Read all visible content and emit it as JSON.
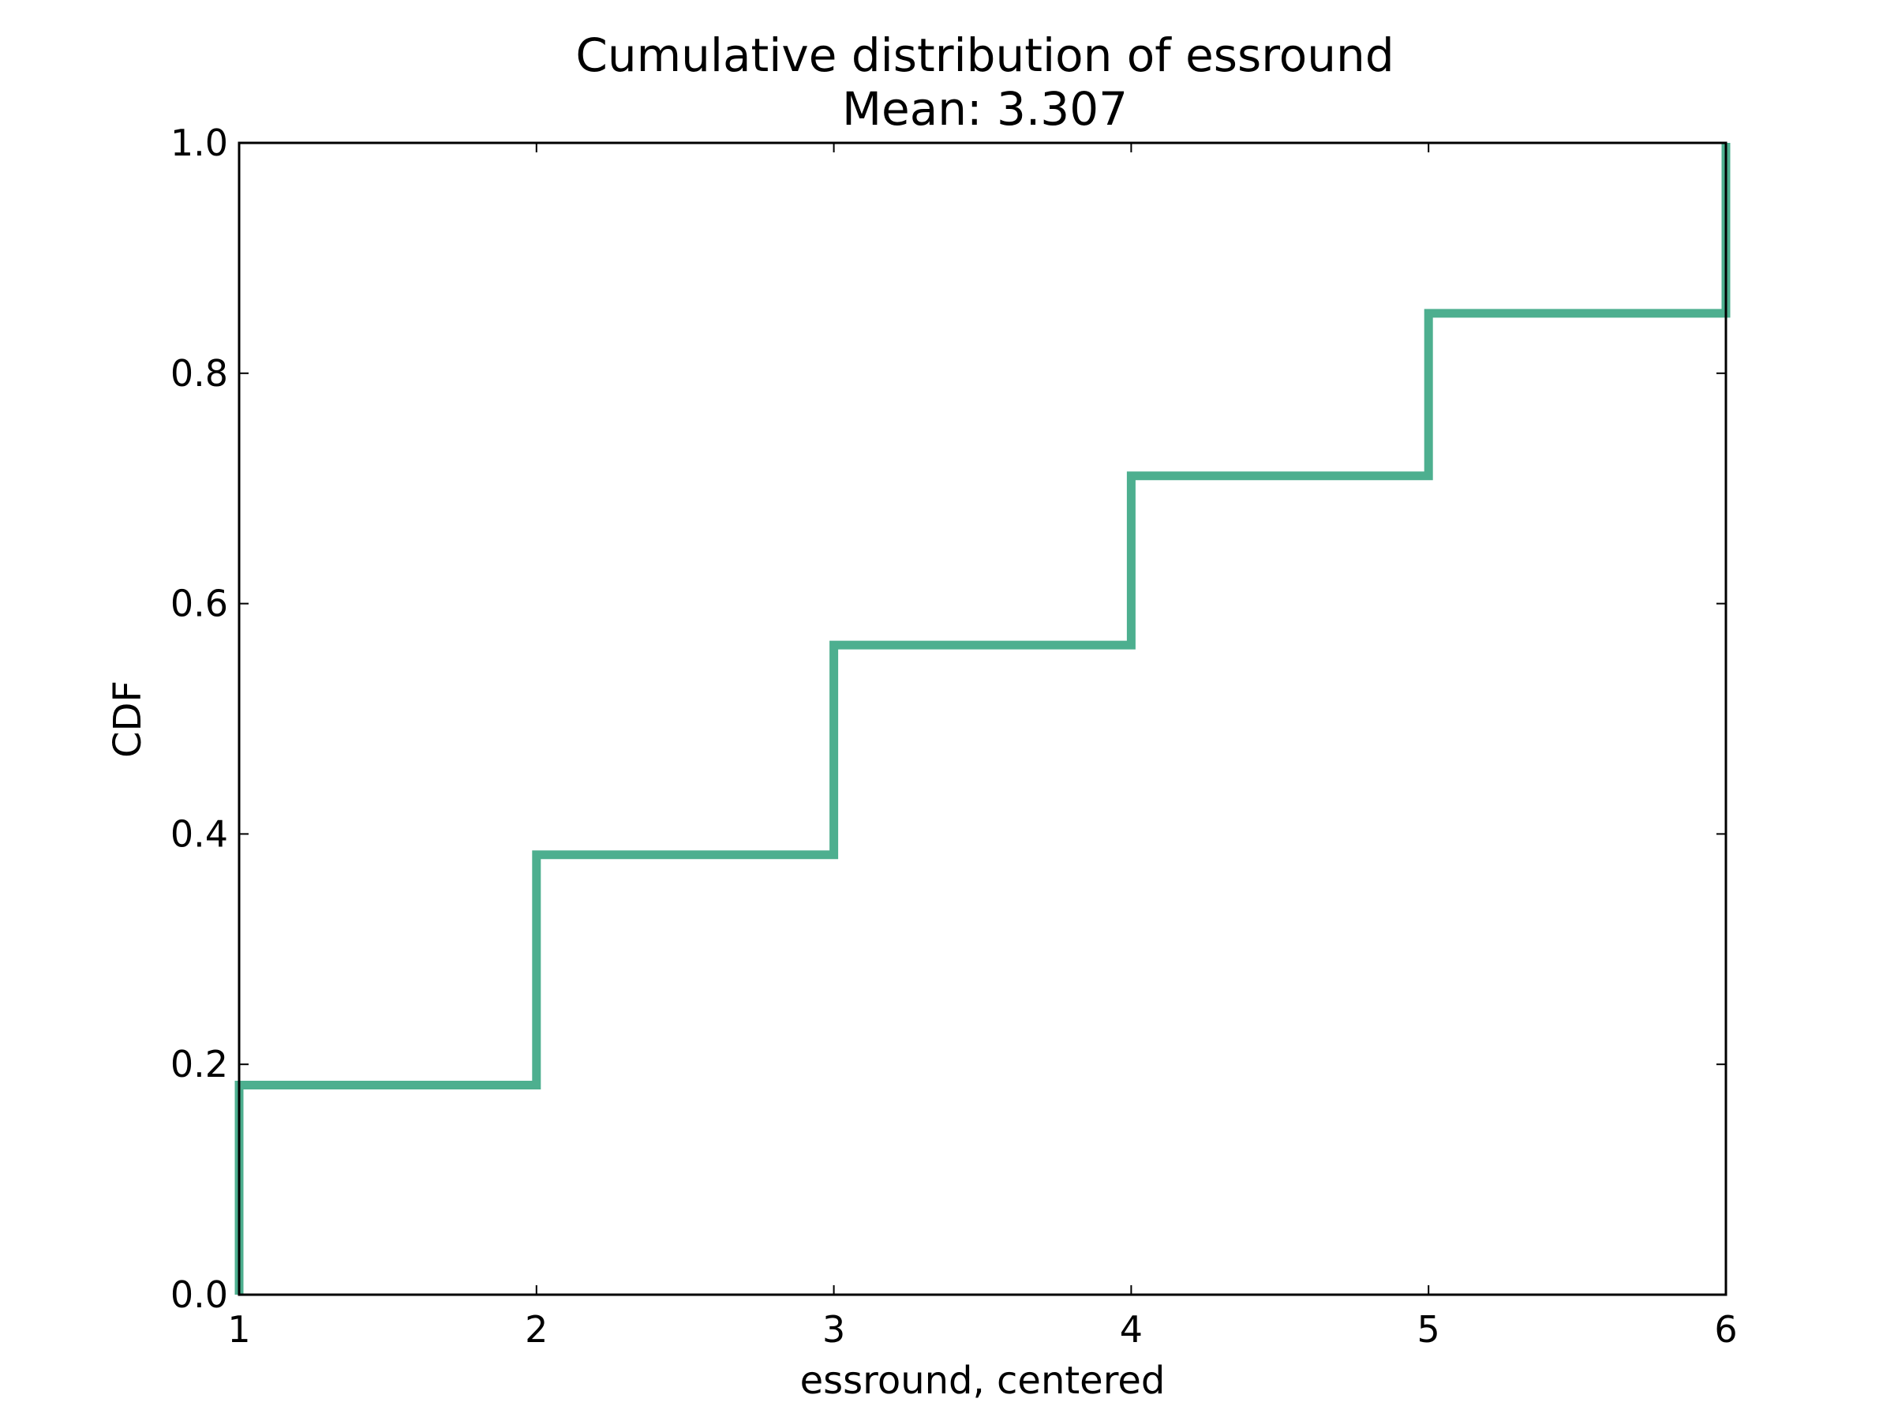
{
  "chart_data": {
    "type": "line",
    "step": true,
    "title": "Cumulative distribution of essround",
    "subtitle": "Mean: 3.307",
    "xlabel": "essround, centered",
    "ylabel": "CDF",
    "xlim": [
      1,
      6
    ],
    "ylim": [
      0.0,
      1.0
    ],
    "x_ticks": [
      "1",
      "2",
      "3",
      "4",
      "5",
      "6"
    ],
    "y_ticks": [
      "0.0",
      "0.2",
      "0.4",
      "0.6",
      "0.8",
      "1.0"
    ],
    "grid": false,
    "legend": "none",
    "series": [
      {
        "color": "#4daf8f",
        "x": [
          1,
          1,
          2,
          2,
          3,
          3,
          4,
          4,
          5,
          5,
          6,
          6
        ],
        "y": [
          0.0,
          0.182,
          0.182,
          0.382,
          0.382,
          0.564,
          0.564,
          0.711,
          0.711,
          0.852,
          0.852,
          1.0
        ]
      }
    ]
  }
}
